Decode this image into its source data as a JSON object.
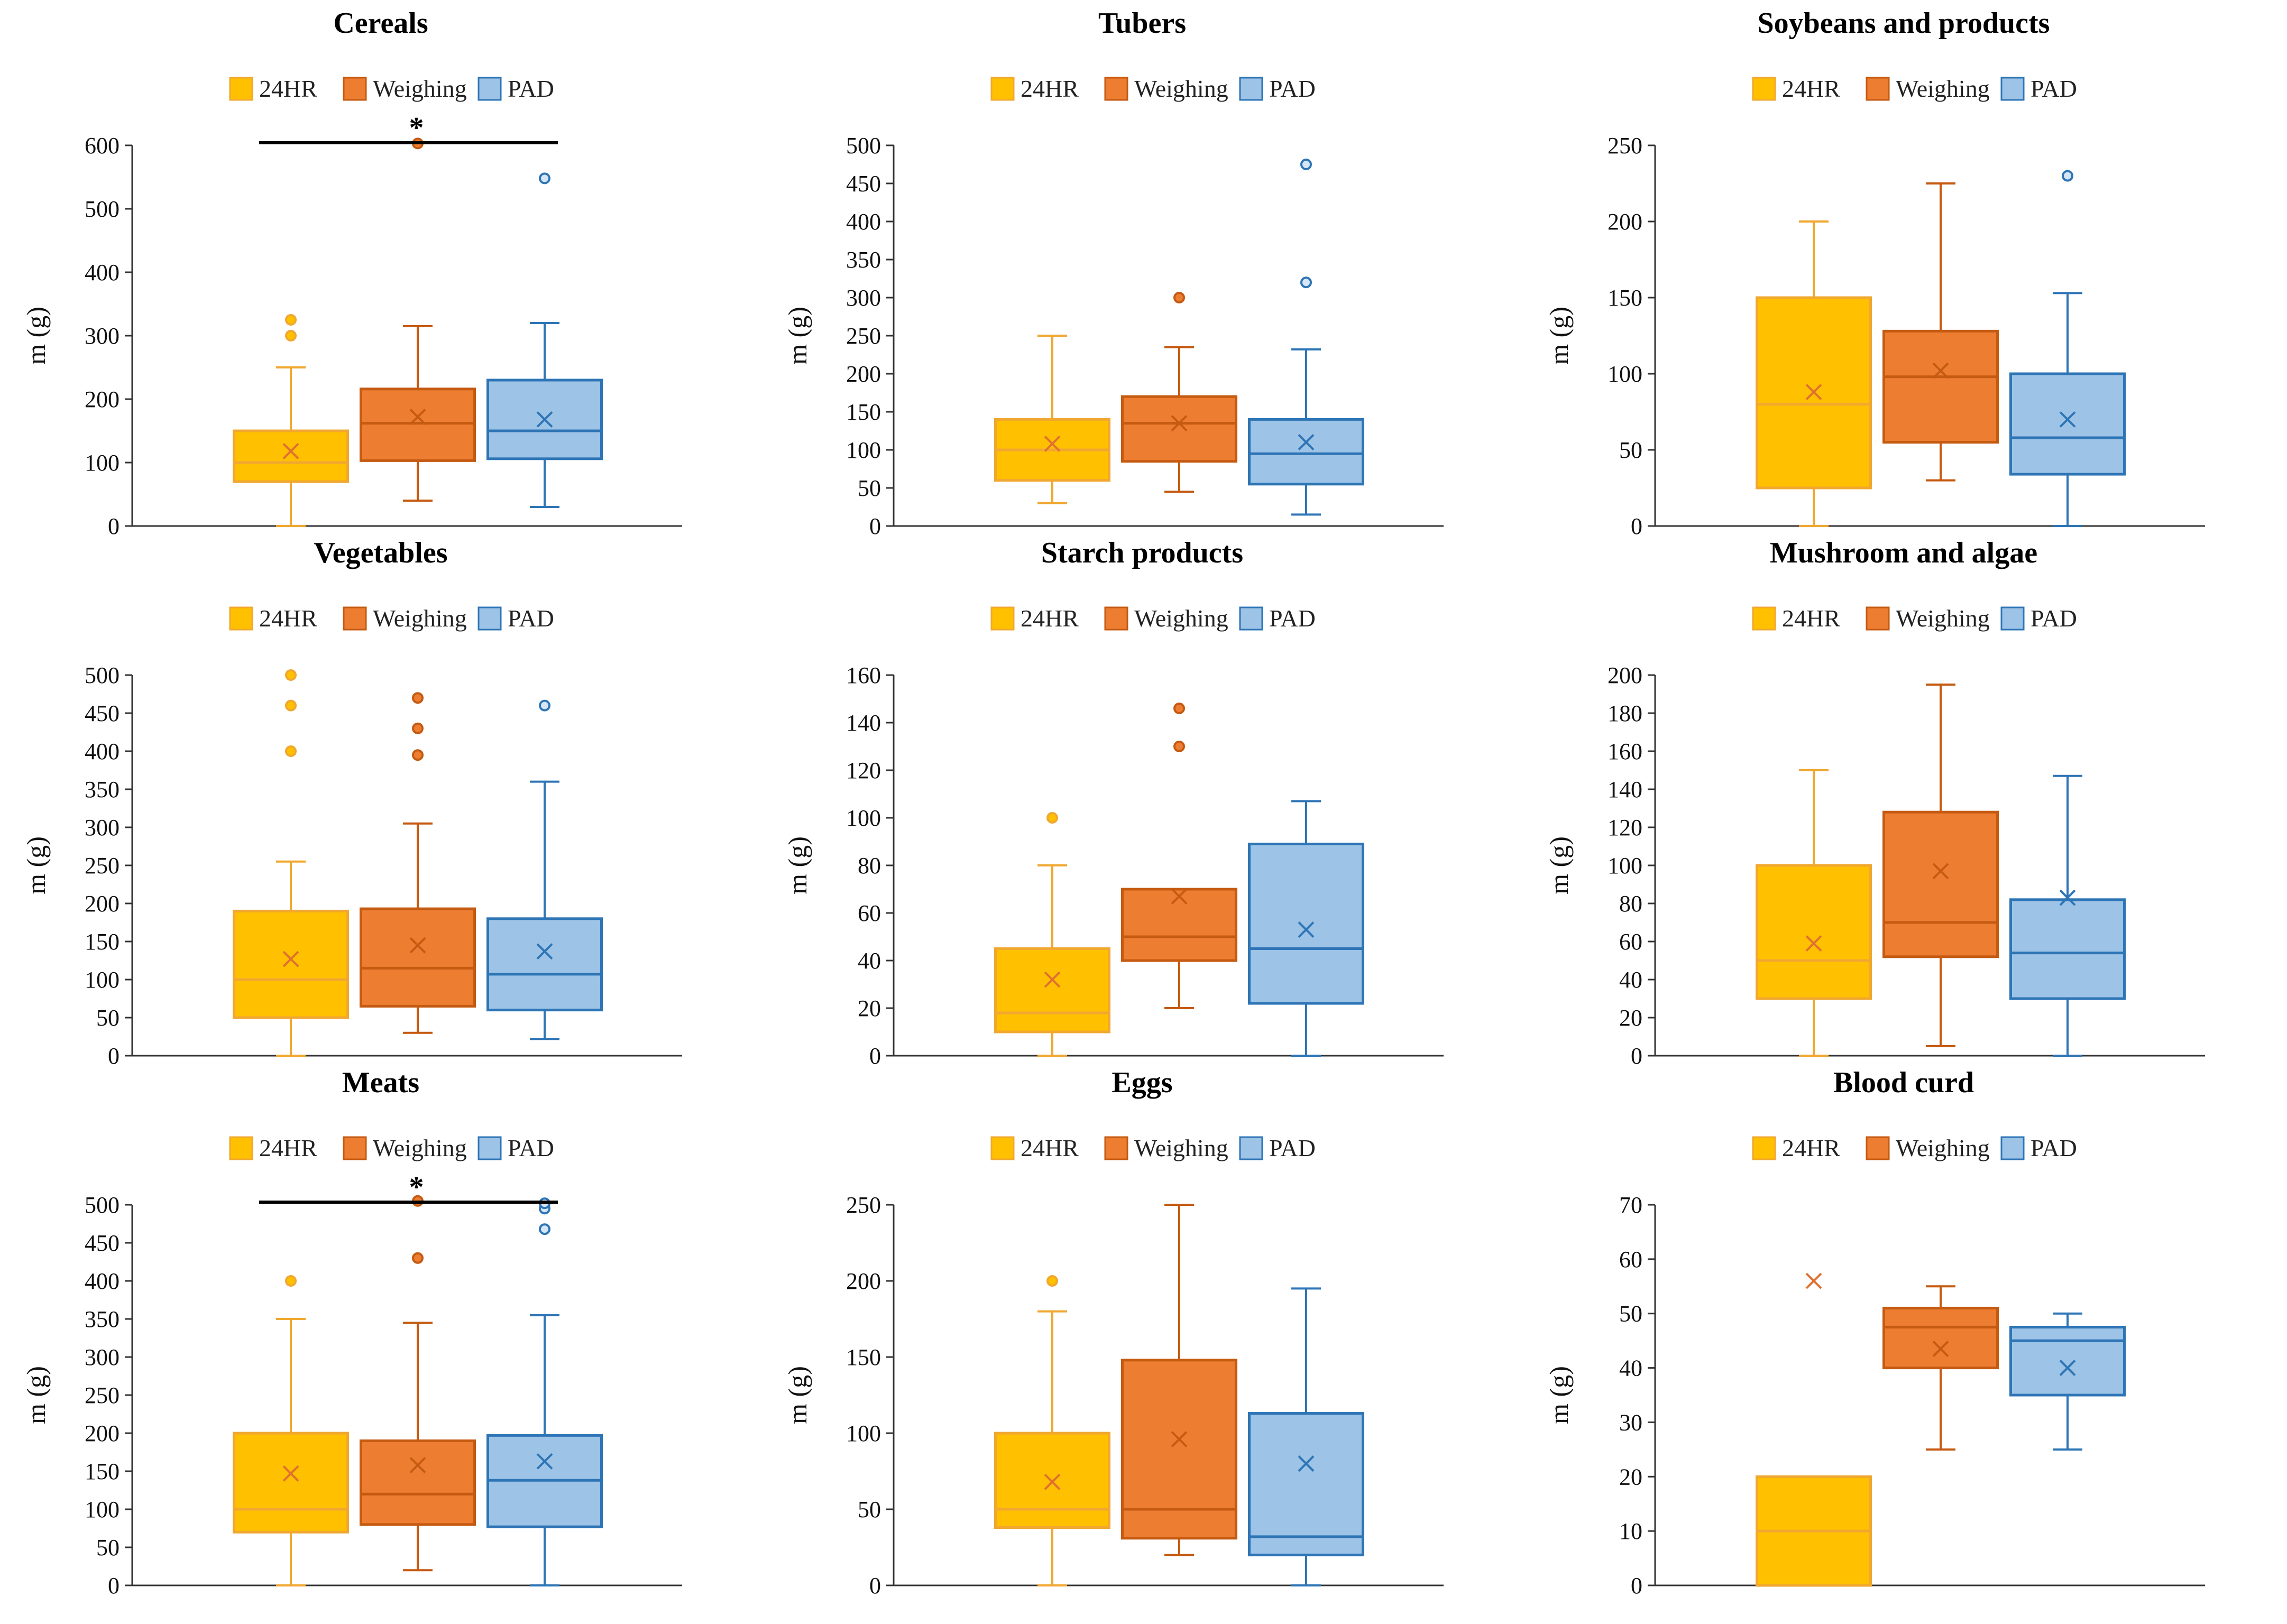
{
  "legend_labels": [
    "24HR",
    "Weighing",
    "PAD"
  ],
  "colors": {
    "24HR": {
      "fill": "#FFC000",
      "stroke": "#F0A830",
      "text": "#E8A040"
    },
    "Weighing": {
      "fill": "#ED7D31",
      "stroke": "#C55A11",
      "text": "#C55A11"
    },
    "PAD": {
      "fill": "#9DC3E6",
      "stroke": "#2E75B6",
      "text": "#2E75B6"
    }
  },
  "chart_data": [
    {
      "type": "box",
      "title": "Cereals",
      "ylabel": "m (g)",
      "ylim": [
        0,
        600
      ],
      "yticks": [
        "0",
        "100",
        "200",
        "300",
        "400",
        "500",
        "600"
      ],
      "significance": {
        "label": "*",
        "from": "24HR",
        "to": "PAD"
      },
      "series": [
        {
          "name": "24HR",
          "min": 0,
          "q1": 70,
          "median": 100,
          "q3": 150,
          "max": 250,
          "mean": 118,
          "outliers": [
            300,
            325
          ]
        },
        {
          "name": "Weighing",
          "min": 40,
          "q1": 103,
          "median": 162,
          "q3": 216,
          "max": 315,
          "mean": 172,
          "outliers": [
            603
          ]
        },
        {
          "name": "PAD",
          "min": 30,
          "q1": 106,
          "median": 150,
          "q3": 230,
          "max": 320,
          "mean": 168,
          "outliers": [
            548
          ]
        }
      ]
    },
    {
      "type": "box",
      "title": "Tubers",
      "ylabel": "m (g)",
      "ylim": [
        0,
        500
      ],
      "yticks": [
        "0",
        "50",
        "100",
        "150",
        "200",
        "250",
        "300",
        "350",
        "400",
        "450",
        "500"
      ],
      "significance": null,
      "series": [
        {
          "name": "24HR",
          "min": 30,
          "q1": 60,
          "median": 100,
          "q3": 140,
          "max": 250,
          "mean": 108,
          "outliers": []
        },
        {
          "name": "Weighing",
          "min": 45,
          "q1": 85,
          "median": 135,
          "q3": 170,
          "max": 235,
          "mean": 135,
          "outliers": [
            300
          ]
        },
        {
          "name": "PAD",
          "min": 15,
          "q1": 55,
          "median": 95,
          "q3": 140,
          "max": 232,
          "mean": 110,
          "outliers": [
            320,
            475
          ]
        }
      ]
    },
    {
      "type": "box",
      "title": "Soybeans and products",
      "ylabel": "m (g)",
      "ylim": [
        0,
        250
      ],
      "yticks": [
        "0",
        "50",
        "100",
        "150",
        "200",
        "250"
      ],
      "significance": null,
      "series": [
        {
          "name": "24HR",
          "min": 0,
          "q1": 25,
          "median": 80,
          "q3": 150,
          "max": 200,
          "mean": 88,
          "outliers": []
        },
        {
          "name": "Weighing",
          "min": 30,
          "q1": 55,
          "median": 98,
          "q3": 128,
          "max": 225,
          "mean": 102,
          "outliers": []
        },
        {
          "name": "PAD",
          "min": 0,
          "q1": 34,
          "median": 58,
          "q3": 100,
          "max": 153,
          "mean": 70,
          "outliers": [
            230
          ]
        }
      ]
    },
    {
      "type": "box",
      "title": "Vegetables",
      "ylabel": "m (g)",
      "ylim": [
        0,
        500
      ],
      "yticks": [
        "0",
        "50",
        "100",
        "150",
        "200",
        "250",
        "300",
        "350",
        "400",
        "450",
        "500"
      ],
      "significance": null,
      "series": [
        {
          "name": "24HR",
          "min": 0,
          "q1": 50,
          "median": 100,
          "q3": 190,
          "max": 255,
          "mean": 127,
          "outliers": [
            400,
            460,
            500
          ]
        },
        {
          "name": "Weighing",
          "min": 30,
          "q1": 65,
          "median": 115,
          "q3": 193,
          "max": 305,
          "mean": 145,
          "outliers": [
            395,
            430,
            470
          ]
        },
        {
          "name": "PAD",
          "min": 22,
          "q1": 60,
          "median": 107,
          "q3": 180,
          "max": 360,
          "mean": 137,
          "outliers": [
            460
          ]
        }
      ]
    },
    {
      "type": "box",
      "title": "Starch products",
      "ylabel": "m (g)",
      "ylim": [
        0,
        160
      ],
      "yticks": [
        "0",
        "20",
        "40",
        "60",
        "80",
        "100",
        "120",
        "140",
        "160"
      ],
      "significance": null,
      "series": [
        {
          "name": "24HR",
          "min": 0,
          "q1": 10,
          "median": 18,
          "q3": 45,
          "max": 80,
          "mean": 32,
          "outliers": [
            100
          ]
        },
        {
          "name": "Weighing",
          "min": 20,
          "q1": 40,
          "median": 50,
          "q3": 70,
          "max": 70,
          "mean": 67,
          "outliers": [
            130,
            146
          ]
        },
        {
          "name": "PAD",
          "min": 0,
          "q1": 22,
          "median": 45,
          "q3": 89,
          "max": 107,
          "mean": 53,
          "outliers": []
        }
      ]
    },
    {
      "type": "box",
      "title": "Mushroom and algae",
      "ylabel": "m (g)",
      "ylim": [
        0,
        200
      ],
      "yticks": [
        "0",
        "20",
        "40",
        "60",
        "80",
        "100",
        "120",
        "140",
        "160",
        "180",
        "200"
      ],
      "significance": null,
      "series": [
        {
          "name": "24HR",
          "min": 0,
          "q1": 30,
          "median": 50,
          "q3": 100,
          "max": 150,
          "mean": 59,
          "outliers": []
        },
        {
          "name": "Weighing",
          "min": 5,
          "q1": 52,
          "median": 70,
          "q3": 128,
          "max": 195,
          "mean": 97,
          "outliers": []
        },
        {
          "name": "PAD",
          "min": 0,
          "q1": 30,
          "median": 54,
          "q3": 82,
          "max": 147,
          "mean": 83,
          "outliers": []
        }
      ]
    },
    {
      "type": "box",
      "title": "Meats",
      "ylabel": "m (g)",
      "ylim": [
        0,
        500
      ],
      "yticks": [
        "0",
        "50",
        "100",
        "150",
        "200",
        "250",
        "300",
        "350",
        "400",
        "450",
        "500"
      ],
      "significance": {
        "label": "*",
        "from": "24HR",
        "to": "PAD"
      },
      "series": [
        {
          "name": "24HR",
          "min": 0,
          "q1": 70,
          "median": 100,
          "q3": 200,
          "max": 350,
          "mean": 147,
          "outliers": [
            400
          ]
        },
        {
          "name": "Weighing",
          "min": 20,
          "q1": 80,
          "median": 120,
          "q3": 190,
          "max": 345,
          "mean": 158,
          "outliers": [
            430,
            505
          ]
        },
        {
          "name": "PAD",
          "min": 0,
          "q1": 77,
          "median": 138,
          "q3": 197,
          "max": 355,
          "mean": 163,
          "outliers": [
            468,
            495,
            502
          ]
        }
      ]
    },
    {
      "type": "box",
      "title": "Eggs",
      "ylabel": "m (g)",
      "ylim": [
        0,
        250
      ],
      "yticks": [
        "0",
        "50",
        "100",
        "150",
        "200",
        "250"
      ],
      "significance": null,
      "series": [
        {
          "name": "24HR",
          "min": 0,
          "q1": 38,
          "median": 50,
          "q3": 100,
          "max": 180,
          "mean": 68,
          "outliers": [
            200
          ]
        },
        {
          "name": "Weighing",
          "min": 20,
          "q1": 31,
          "median": 50,
          "q3": 148,
          "max": 250,
          "mean": 96,
          "outliers": []
        },
        {
          "name": "PAD",
          "min": 0,
          "q1": 20,
          "median": 32,
          "q3": 113,
          "max": 195,
          "mean": 80,
          "outliers": []
        }
      ]
    },
    {
      "type": "box",
      "title": "Blood curd",
      "ylabel": "m (g)",
      "ylim": [
        0,
        70
      ],
      "yticks": [
        "0",
        "10",
        "20",
        "30",
        "40",
        "50",
        "60",
        "70"
      ],
      "significance": null,
      "series": [
        {
          "name": "24HR",
          "min": 0,
          "q1": 0,
          "median": 10,
          "q3": 20,
          "max": 20,
          "mean": 56,
          "outliers": []
        },
        {
          "name": "Weighing",
          "min": 25,
          "q1": 40,
          "median": 47.5,
          "q3": 51,
          "max": 55,
          "mean": 43.5,
          "outliers": []
        },
        {
          "name": "PAD",
          "min": 25,
          "q1": 35,
          "median": 45,
          "q3": 47.5,
          "max": 50,
          "mean": 40,
          "outliers": []
        }
      ]
    }
  ]
}
